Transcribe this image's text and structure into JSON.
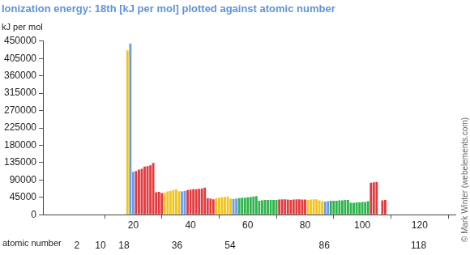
{
  "chart_data": {
    "type": "bar",
    "title": "Ionization energy: 18th [kJ per mol] plotted against atomic number",
    "ylabel": "kJ per mol",
    "xlabel": "atomic number",
    "annotation": "© Mark Winter (webelements.com)",
    "x": [
      18,
      19,
      20,
      21,
      22,
      23,
      24,
      25,
      26,
      27,
      28,
      29,
      30,
      31,
      32,
      33,
      34,
      35,
      36,
      37,
      38,
      39,
      40,
      41,
      42,
      43,
      44,
      45,
      46,
      47,
      48,
      49,
      50,
      51,
      52,
      53,
      54,
      55,
      56,
      57,
      58,
      59,
      60,
      61,
      62,
      63,
      64,
      65,
      66,
      67,
      68,
      69,
      70,
      71,
      72,
      73,
      74,
      75,
      76,
      77,
      78,
      79,
      80,
      81,
      82,
      83,
      84,
      85,
      86,
      87,
      88,
      89,
      90,
      91,
      92,
      93,
      94,
      95,
      96,
      97,
      98,
      99,
      100,
      101,
      102,
      103,
      104,
      105,
      106,
      107,
      108
    ],
    "values": [
      426000,
      444000,
      111000,
      113000,
      117000,
      119000,
      125000,
      126000,
      128000,
      134000,
      58000,
      59000,
      56000,
      57000,
      60000,
      62000,
      64000,
      66000,
      61000,
      60000,
      62000,
      64000,
      65000,
      66000,
      66000,
      67000,
      68000,
      70000,
      43000,
      42000,
      40000,
      43000,
      44000,
      45000,
      46000,
      47000,
      42000,
      41000,
      42000,
      43000,
      44000,
      44000,
      45000,
      46000,
      47000,
      48000,
      36000,
      37000,
      38000,
      38000,
      38000,
      38000,
      38000,
      39000,
      40000,
      40000,
      39000,
      38000,
      39000,
      40000,
      40000,
      39000,
      39000,
      38000,
      39000,
      40000,
      40000,
      37000,
      35000,
      34000,
      35000,
      36000,
      36000,
      36000,
      37000,
      37000,
      38000,
      38000,
      31000,
      31000,
      32000,
      32000,
      33000,
      33000,
      35000,
      83000,
      84000,
      85000,
      null,
      37000,
      38000
    ],
    "colors": [
      "#f0c51e",
      "#6c9cec",
      "#6c9cec",
      "#e33a3e",
      "#e33a3e",
      "#e33a3e",
      "#e33a3e",
      "#e33a3e",
      "#e33a3e",
      "#e33a3e",
      "#e33a3e",
      "#e33a3e",
      "#e33a3e",
      "#f0c51e",
      "#f0c51e",
      "#f0c51e",
      "#f0c51e",
      "#f0c51e",
      "#f0c51e",
      "#6c9cec",
      "#6c9cec",
      "#e33a3e",
      "#e33a3e",
      "#e33a3e",
      "#e33a3e",
      "#e33a3e",
      "#e33a3e",
      "#e33a3e",
      "#e33a3e",
      "#e33a3e",
      "#e33a3e",
      "#f0c51e",
      "#f0c51e",
      "#f0c51e",
      "#f0c51e",
      "#f0c51e",
      "#f0c51e",
      "#6c9cec",
      "#6c9cec",
      "#2fb44c",
      "#2fb44c",
      "#2fb44c",
      "#2fb44c",
      "#2fb44c",
      "#2fb44c",
      "#2fb44c",
      "#2fb44c",
      "#2fb44c",
      "#2fb44c",
      "#2fb44c",
      "#2fb44c",
      "#2fb44c",
      "#2fb44c",
      "#e33a3e",
      "#e33a3e",
      "#e33a3e",
      "#e33a3e",
      "#e33a3e",
      "#e33a3e",
      "#e33a3e",
      "#e33a3e",
      "#e33a3e",
      "#e33a3e",
      "#f0c51e",
      "#f0c51e",
      "#f0c51e",
      "#f0c51e",
      "#f0c51e",
      "#f0c51e",
      "#6c9cec",
      "#6c9cec",
      "#2fb44c",
      "#2fb44c",
      "#2fb44c",
      "#2fb44c",
      "#2fb44c",
      "#2fb44c",
      "#2fb44c",
      "#2fb44c",
      "#2fb44c",
      "#2fb44c",
      "#2fb44c",
      "#2fb44c",
      "#2fb44c",
      "#2fb44c",
      "#e33a3e",
      "#e33a3e",
      "#e33a3e",
      "#e33a3e",
      "#e33a3e",
      "#e33a3e"
    ],
    "xlim": [
      0.5,
      120.5
    ],
    "xticks": [
      20,
      40,
      60,
      80,
      100,
      120
    ],
    "x2lim": [
      0.5,
      120.5
    ],
    "x2ticks": [
      2,
      10,
      18,
      36,
      54,
      86,
      118
    ],
    "ylim": [
      0,
      450000
    ],
    "yticks": [
      0,
      45000,
      90000,
      135000,
      180000,
      225000,
      270000,
      315000,
      360000,
      405000,
      450000
    ],
    "grid": false
  }
}
